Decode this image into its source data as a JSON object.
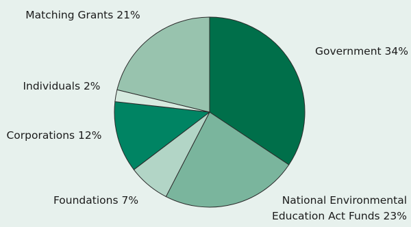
{
  "chart_data": {
    "type": "pie",
    "start_angle_deg": 90,
    "direction": "clockwise",
    "slices": [
      {
        "label": "Government",
        "value": 34,
        "text": "Government 34%",
        "color": "#006f4a"
      },
      {
        "label": "National Environmental Education Act Funds",
        "value": 23,
        "text": [
          "National Environmental",
          "Education Act Funds 23%"
        ],
        "color": "#7ab59d"
      },
      {
        "label": "Foundations",
        "value": 7,
        "text": "Foundations 7%",
        "color": "#b2d5c6"
      },
      {
        "label": "Corporations",
        "value": 12,
        "text": "Corporations 12%",
        "color": "#008463"
      },
      {
        "label": "Individuals",
        "value": 2,
        "text": "Individuals 2%",
        "color": "#d6eadf"
      },
      {
        "label": "Matching Grants",
        "value": 21,
        "text": "Matching Grants 21%",
        "color": "#98c3ae"
      }
    ]
  }
}
